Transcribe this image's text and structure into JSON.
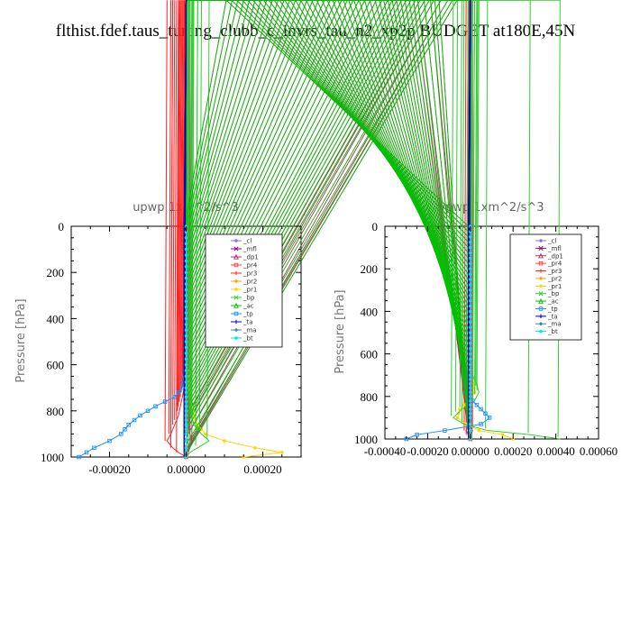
{
  "title": "flthist.fdef.taus_tuning_clubb_c_invrs_tau_n2_xp2p  BUDGET at180E,45N",
  "chart_data": [
    {
      "type": "line",
      "title": "upwp   1xm^2/s^3",
      "ylabel": "Pressure [hPa]",
      "xlabel": "",
      "ylim": [
        1000,
        0
      ],
      "xlim": [
        -0.0003,
        0.0003
      ],
      "xticks": [
        -0.0002,
        0.0,
        0.0002
      ],
      "xtick_labels": [
        "-0.00020",
        "0.00000",
        "0.00020"
      ],
      "yticks": [
        0,
        200,
        400,
        600,
        800,
        1000
      ],
      "legend_position": "top-right",
      "y": [
        0,
        100,
        200,
        300,
        400,
        500,
        600,
        700,
        740,
        780,
        820,
        860,
        900,
        930,
        960,
        980,
        1000
      ],
      "series": [
        {
          "name": "_cl",
          "color": "#9370db",
          "values": [
            0,
            0,
            0,
            0,
            0,
            0,
            0,
            0,
            0,
            0,
            0,
            0,
            0,
            0,
            0,
            0,
            0
          ]
        },
        {
          "name": "_mfl",
          "color": "#8b008b",
          "values": [
            0,
            0,
            0,
            0,
            0,
            0,
            0,
            0,
            0,
            0,
            0,
            0,
            0,
            0,
            0,
            0,
            0
          ]
        },
        {
          "name": "_dp1",
          "color": "#b03060",
          "values": [
            0,
            0,
            0,
            0,
            0,
            0,
            0,
            0,
            0,
            0,
            0,
            5e-06,
            1e-05,
            1.5e-05,
            1e-05,
            5e-06,
            0
          ]
        },
        {
          "name": "_pr4",
          "color": "#ff4040",
          "values": [
            0,
            0,
            0,
            0,
            0,
            0,
            0,
            0,
            0,
            0,
            0,
            0,
            0,
            0,
            0,
            0,
            0
          ]
        },
        {
          "name": "_pr3",
          "color": "#ff2020",
          "values": [
            0,
            0,
            0,
            0,
            0,
            0,
            0,
            -5e-06,
            -1e-05,
            -1.5e-05,
            -2e-05,
            -3e-05,
            -4e-05,
            -5e-05,
            -3.5e-05,
            -2e-05,
            0
          ]
        },
        {
          "name": "_pr2",
          "color": "#ffa500",
          "values": [
            0,
            0,
            0,
            0,
            0,
            0,
            0,
            0,
            0,
            0,
            0,
            0,
            0,
            0,
            0,
            0,
            0
          ]
        },
        {
          "name": "_pr1",
          "color": "#ffd700",
          "values": [
            0,
            0,
            0,
            0,
            0,
            0,
            3e-06,
            8e-06,
            1e-05,
            1.5e-05,
            2e-05,
            3e-05,
            5e-05,
            0.0001,
            0.00018,
            0.00025,
            0.00015
          ]
        },
        {
          "name": "_bp",
          "color": "#32cd32",
          "values": [
            0,
            0,
            0,
            0,
            0,
            0,
            0,
            5e-06,
            1e-05,
            2e-05,
            1.5e-05,
            2e-05,
            4e-05,
            6e-05,
            3e-05,
            1e-05,
            0
          ]
        },
        {
          "name": "_ac",
          "color": "#00c000",
          "values": [
            0,
            0,
            0,
            0,
            0,
            0,
            0,
            0,
            0,
            0,
            0,
            0,
            0,
            0,
            0,
            0,
            0
          ]
        },
        {
          "name": "_tp",
          "color": "#1e90ff",
          "values": [
            0,
            0,
            0,
            0,
            0,
            0,
            0,
            -1e-05,
            -3e-05,
            -8e-05,
            -0.00012,
            -0.00015,
            -0.00017,
            -0.0002,
            -0.00024,
            -0.00026,
            -0.00028
          ]
        },
        {
          "name": "_ta",
          "color": "#0000cd",
          "values": [
            0,
            0,
            0,
            0,
            0,
            0,
            0,
            0,
            0,
            0,
            0,
            0,
            0,
            0,
            0,
            0,
            0
          ]
        },
        {
          "name": "_ma",
          "color": "#4682b4",
          "values": [
            0,
            0,
            0,
            0,
            0,
            0,
            0,
            0,
            0,
            0,
            0,
            0,
            0,
            0,
            0,
            0,
            0
          ]
        },
        {
          "name": "_bt",
          "color": "#00e5ee",
          "values": [
            0,
            0,
            0,
            0,
            0,
            0,
            0,
            0,
            0,
            0,
            0,
            0,
            0,
            0,
            0,
            0,
            0
          ]
        }
      ]
    },
    {
      "type": "line",
      "title": "vpwp   1xm^2/s^3",
      "ylabel": "Pressure [hPa]",
      "xlabel": "",
      "ylim": [
        1000,
        0
      ],
      "xlim": [
        -0.0004,
        0.0006
      ],
      "xticks": [
        -0.0004,
        -0.0002,
        0.0,
        0.0002,
        0.0004,
        0.0006
      ],
      "xtick_labels": [
        "-0.00040",
        "-0.00020",
        "0.00000",
        "0.00020",
        "0.00040",
        "0.00060"
      ],
      "yticks": [
        0,
        200,
        400,
        600,
        800,
        1000
      ],
      "legend_position": "top-right",
      "y": [
        0,
        100,
        200,
        300,
        400,
        500,
        600,
        700,
        740,
        780,
        820,
        860,
        900,
        930,
        960,
        980,
        1000
      ],
      "series": [
        {
          "name": "_cl",
          "color": "#9370db",
          "values": [
            0,
            0,
            0,
            0,
            0,
            0,
            0,
            0,
            0,
            0,
            0,
            0,
            0,
            0,
            0,
            0,
            0
          ]
        },
        {
          "name": "_mfl",
          "color": "#8b008b",
          "values": [
            0,
            0,
            0,
            0,
            0,
            0,
            0,
            0,
            0,
            0,
            0,
            0,
            0,
            0,
            0,
            0,
            0
          ]
        },
        {
          "name": "_dp1",
          "color": "#b03060",
          "values": [
            0,
            0,
            0,
            0,
            0,
            0,
            0,
            0,
            0,
            0,
            0,
            -5e-06,
            -1e-05,
            0,
            1e-05,
            5e-06,
            0
          ]
        },
        {
          "name": "_pr4",
          "color": "#ff4040",
          "values": [
            0,
            0,
            0,
            0,
            0,
            0,
            0,
            0,
            0,
            0,
            0,
            0,
            0,
            0,
            0,
            0,
            0
          ]
        },
        {
          "name": "_pr3",
          "color": "#ff2020",
          "values": [
            0,
            0,
            0,
            0,
            0,
            0,
            0,
            0,
            0,
            0,
            0,
            5e-06,
            1e-05,
            -1e-05,
            -2e-05,
            -1e-05,
            0
          ]
        },
        {
          "name": "_pr2",
          "color": "#ffa500",
          "values": [
            0,
            0,
            0,
            0,
            0,
            0,
            0,
            0,
            0,
            0,
            0,
            0,
            0,
            0,
            0,
            0,
            0
          ]
        },
        {
          "name": "_pr1",
          "color": "#ffd700",
          "values": [
            0,
            0,
            0,
            0,
            0,
            0,
            0,
            5e-06,
            1.5e-05,
            2e-05,
            -1e-05,
            -5e-05,
            -6e-05,
            -2e-05,
            4e-05,
            0.00015,
            0.0002
          ]
        },
        {
          "name": "_bp",
          "color": "#32cd32",
          "values": [
            0,
            0,
            0,
            0,
            0,
            0,
            0,
            1e-05,
            3e-05,
            4e-05,
            2e-05,
            -4e-05,
            -8e-05,
            -3e-05,
            8e-05,
            0.00028,
            0.00042
          ]
        },
        {
          "name": "_ac",
          "color": "#00c000",
          "values": [
            0,
            0,
            0,
            0,
            0,
            0,
            0,
            0,
            0,
            0,
            0,
            0,
            0,
            0,
            0,
            0,
            0
          ]
        },
        {
          "name": "_tp",
          "color": "#1e90ff",
          "values": [
            0,
            0,
            0,
            0,
            0,
            0,
            0,
            -5e-06,
            -1.5e-05,
            -2e-05,
            1e-05,
            5e-05,
            9e-05,
            5e-05,
            -0.00012,
            -0.00025,
            -0.0003
          ]
        },
        {
          "name": "_ta",
          "color": "#0000cd",
          "values": [
            0,
            0,
            0,
            0,
            0,
            0,
            0,
            0,
            0,
            0,
            0,
            0,
            0,
            0,
            0,
            0,
            0
          ]
        },
        {
          "name": "_ma",
          "color": "#4682b4",
          "values": [
            0,
            0,
            0,
            0,
            0,
            0,
            0,
            0,
            0,
            0,
            0,
            0,
            0,
            0,
            0,
            0,
            0
          ]
        },
        {
          "name": "_bt",
          "color": "#00e5ee",
          "values": [
            0,
            0,
            0,
            0,
            0,
            0,
            0,
            0,
            0,
            0,
            0,
            0,
            0,
            0,
            0,
            0,
            0
          ]
        }
      ]
    }
  ]
}
